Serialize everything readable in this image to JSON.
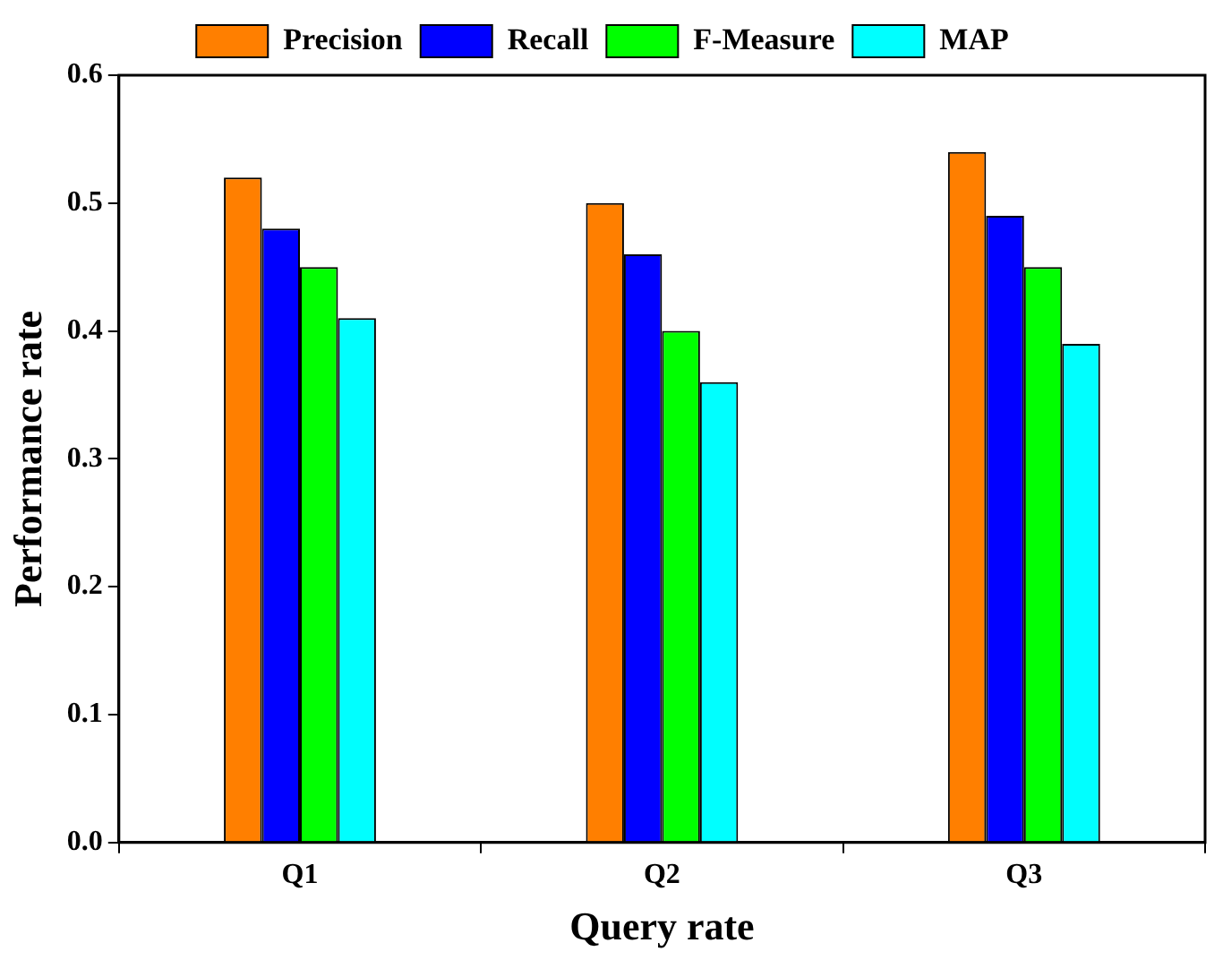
{
  "chart_data": {
    "type": "bar",
    "xlabel": "Query rate",
    "ylabel": "Performance rate",
    "categories": [
      "Q1",
      "Q2",
      "Q3"
    ],
    "series": [
      {
        "name": "Precision",
        "color": "#ff7f00",
        "values": [
          0.52,
          0.5,
          0.54
        ]
      },
      {
        "name": "Recall",
        "color": "#0000ff",
        "values": [
          0.48,
          0.46,
          0.49
        ]
      },
      {
        "name": "F-Measure",
        "color": "#00ff00",
        "values": [
          0.45,
          0.4,
          0.45
        ]
      },
      {
        "name": "MAP",
        "color": "#00ffff",
        "values": [
          0.41,
          0.36,
          0.39
        ]
      }
    ],
    "ylim": [
      0,
      0.6
    ],
    "yticks": [
      {
        "value": 0,
        "label": "0.0"
      },
      0.1,
      0.2,
      0.3,
      0.4,
      0.5,
      0.6
    ],
    "grid": false,
    "legend": "top"
  }
}
